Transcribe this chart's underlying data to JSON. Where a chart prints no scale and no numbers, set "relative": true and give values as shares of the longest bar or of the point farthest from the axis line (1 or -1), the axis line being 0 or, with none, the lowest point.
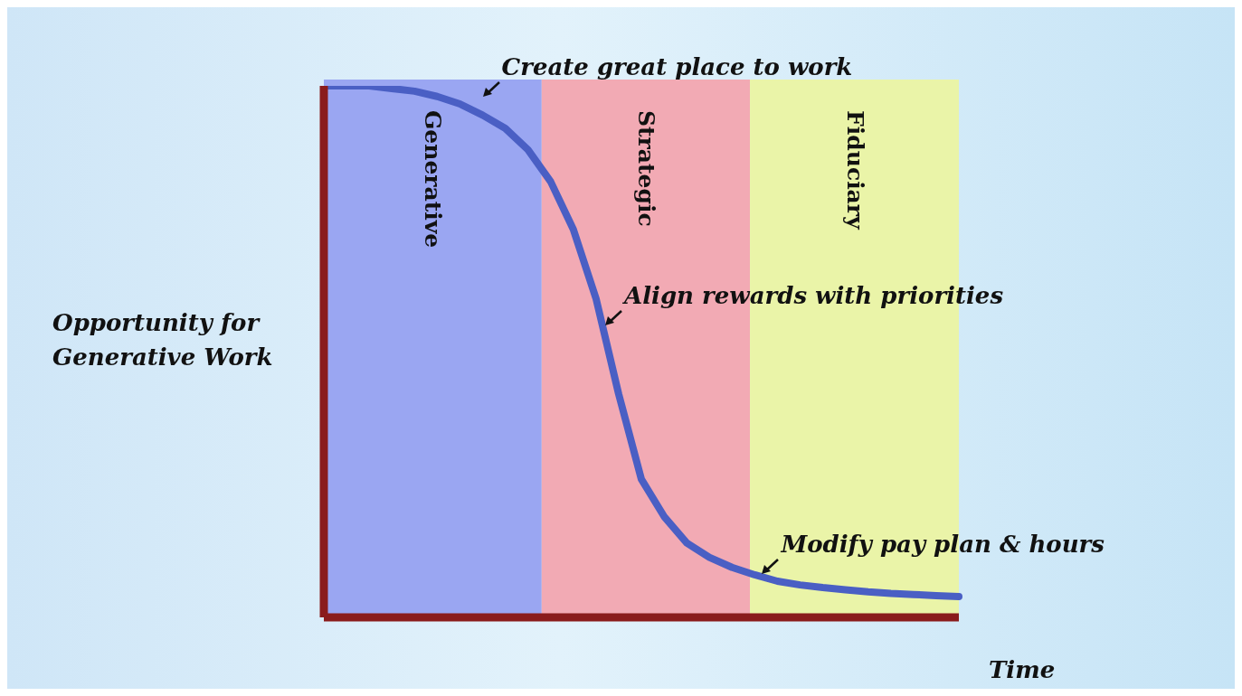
{
  "chart_data": {
    "type": "line",
    "relative": true,
    "xlabel": "Time",
    "ylabel": "Opportunity for Generative Work",
    "categories": [
      null,
      null,
      null,
      null,
      null,
      null,
      null,
      null,
      null,
      null,
      null,
      null,
      null,
      null,
      null,
      null,
      null,
      null,
      null,
      null,
      null,
      null,
      null,
      null,
      null,
      null,
      null,
      null,
      null
    ],
    "marker": "none",
    "line_style": "solid",
    "series": [
      {
        "color": "#4a5fc4",
        "values": [
          1,
          1,
          1,
          0.995,
          0.99,
          0.98,
          0.966,
          0.945,
          0.92,
          0.88,
          0.82,
          0.73,
          0.6,
          0.42,
          0.26,
          0.19,
          0.14,
          0.113,
          0.094,
          0.08,
          0.068,
          0.061,
          0.056,
          0.052,
          0.048,
          0.045,
          0.043,
          0.041,
          0.039
        ]
      }
    ],
    "annotations": [
      "Generative",
      "Strategic",
      "Fiduciary",
      "Create great place to work",
      "Align rewards with priorities",
      "Modify pay plan & hours"
    ]
  }
}
